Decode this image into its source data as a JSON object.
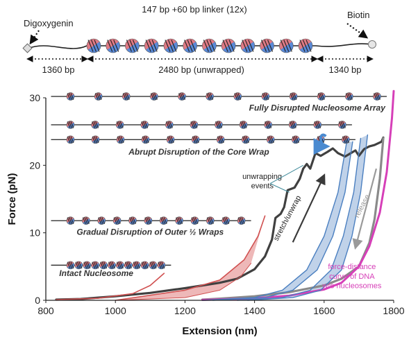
{
  "header": {
    "left_label": "Digoxygenin",
    "right_label": "Biotin",
    "construct_label": "147 bp +60 bp linker (12x)",
    "nucleosome_count": 12,
    "left_handle": "1360 bp",
    "middle_segment": "2480 bp (unwrapped)",
    "right_handle": "1340 bp"
  },
  "colors": {
    "data_trace": "#404040",
    "release_trace": "#8a8a8a",
    "dna_curve": "#d63fb8",
    "unwrap_band": "#4a7fc0",
    "outer_wrap_fill": "#e8a0a0",
    "outer_wrap_line": "#d05050",
    "arrow_blue": "#4a8ad0",
    "nucleosome_pink": "#e07a85",
    "nucleosome_blue": "#5a8ad8"
  },
  "chart_data": {
    "type": "line",
    "xlabel": "Extension (nm)",
    "ylabel": "Force (pN)",
    "xlim": [
      800,
      1800
    ],
    "ylim": [
      0,
      30
    ],
    "xticks": [
      800,
      1000,
      1200,
      1400,
      1600,
      1800
    ],
    "yticks": [
      0,
      10,
      20,
      30
    ],
    "grid": false,
    "series": [
      {
        "role": "stretch",
        "points": [
          [
            830,
            0.1
          ],
          [
            900,
            0.2
          ],
          [
            1000,
            0.6
          ],
          [
            1100,
            1.1
          ],
          [
            1200,
            1.8
          ],
          [
            1300,
            2.6
          ],
          [
            1350,
            3.2
          ],
          [
            1400,
            4.6
          ],
          [
            1430,
            6.5
          ],
          [
            1450,
            9.0
          ],
          [
            1460,
            12.2
          ],
          [
            1475,
            12.8
          ],
          [
            1485,
            13.8
          ],
          [
            1495,
            16.3
          ],
          [
            1515,
            16.7
          ],
          [
            1530,
            18.0
          ],
          [
            1540,
            19.5
          ],
          [
            1550,
            20.2
          ],
          [
            1560,
            19.5
          ],
          [
            1575,
            21.8
          ],
          [
            1590,
            21.4
          ],
          [
            1610,
            22.0
          ],
          [
            1625,
            22.5
          ],
          [
            1640,
            21.8
          ],
          [
            1660,
            21.3
          ],
          [
            1690,
            22.2
          ],
          [
            1700,
            21.4
          ],
          [
            1715,
            22.4
          ],
          [
            1730,
            22.8
          ],
          [
            1745,
            23.0
          ],
          [
            1765,
            23.5
          ],
          [
            1770,
            24.1
          ]
        ]
      },
      {
        "role": "release",
        "points": [
          [
            1770,
            24.0
          ],
          [
            1760,
            18.0
          ],
          [
            1745,
            12.0
          ],
          [
            1730,
            8.5
          ],
          [
            1700,
            5.0
          ],
          [
            1650,
            3.2
          ],
          [
            1600,
            2.2
          ],
          [
            1500,
            1.2
          ],
          [
            1400,
            0.6
          ],
          [
            1300,
            0.25
          ],
          [
            1250,
            0.1
          ]
        ]
      },
      {
        "role": "dna-without-nucleosomes",
        "points": [
          [
            1250,
            0.05
          ],
          [
            1400,
            0.3
          ],
          [
            1500,
            0.7
          ],
          [
            1600,
            1.6
          ],
          [
            1650,
            2.6
          ],
          [
            1700,
            5.0
          ],
          [
            1730,
            8.0
          ],
          [
            1760,
            13.0
          ],
          [
            1780,
            19.0
          ],
          [
            1795,
            27.0
          ],
          [
            1800,
            31.0
          ]
        ]
      },
      {
        "role": "unwrap-band-1-left",
        "points": [
          [
            1250,
            0
          ],
          [
            1400,
            0.4
          ],
          [
            1480,
            1.5
          ],
          [
            1550,
            4.5
          ],
          [
            1600,
            9.5
          ],
          [
            1640,
            16.0
          ],
          [
            1665,
            23.5
          ]
        ]
      },
      {
        "role": "unwrap-band-1-right",
        "points": [
          [
            1280,
            0
          ],
          [
            1430,
            0.4
          ],
          [
            1510,
            1.5
          ],
          [
            1580,
            4.5
          ],
          [
            1625,
            9.5
          ],
          [
            1660,
            16.0
          ],
          [
            1682,
            23.5
          ]
        ]
      },
      {
        "role": "unwrap-band-2-left",
        "points": [
          [
            1350,
            0
          ],
          [
            1480,
            0.4
          ],
          [
            1560,
            1.5
          ],
          [
            1620,
            4.5
          ],
          [
            1655,
            9.5
          ],
          [
            1685,
            16.0
          ],
          [
            1705,
            24.0
          ]
        ]
      },
      {
        "role": "unwrap-band-2-right",
        "points": [
          [
            1380,
            0
          ],
          [
            1510,
            0.4
          ],
          [
            1590,
            1.5
          ],
          [
            1650,
            4.5
          ],
          [
            1680,
            9.5
          ],
          [
            1705,
            16.0
          ],
          [
            1725,
            24.5
          ]
        ]
      },
      {
        "role": "outer-wrap-upper",
        "points": [
          [
            1000,
            0
          ],
          [
            1200,
            1.5
          ],
          [
            1300,
            3.0
          ],
          [
            1370,
            6.0
          ],
          [
            1410,
            9.5
          ],
          [
            1430,
            12.5
          ]
        ]
      },
      {
        "role": "outer-wrap-lower",
        "points": [
          [
            1000,
            0
          ],
          [
            1200,
            0.4
          ],
          [
            1300,
            1.5
          ],
          [
            1360,
            3.5
          ],
          [
            1390,
            5.5
          ]
        ]
      },
      {
        "role": "intact-red",
        "points": [
          [
            830,
            0.1
          ],
          [
            950,
            0.3
          ],
          [
            1050,
            1.0
          ],
          [
            1100,
            2.2
          ],
          [
            1140,
            4.0
          ]
        ]
      }
    ],
    "nucleosome_rows": [
      {
        "y": 30.2,
        "x0": 815,
        "x1": 1780,
        "count": 12,
        "label": "Fully Disrupted Nucleosome Array",
        "label_x": 1580,
        "label_y": 28.1
      },
      {
        "y": 26.0,
        "x0": 815,
        "x1": 1680,
        "count": 12,
        "label": "",
        "label_x": 0,
        "label_y": 0
      },
      {
        "y": 23.8,
        "x0": 815,
        "x1": 1690,
        "count": 12,
        "label": "Abrupt Disruption of the Core Wrap",
        "label_x": 1240,
        "label_y": 21.6
      },
      {
        "y": 11.8,
        "x0": 815,
        "x1": 1390,
        "count": 12,
        "label": "Gradual Disruption of Outer ½ Wraps",
        "label_x": 1100,
        "label_y": 9.7
      },
      {
        "y": 5.2,
        "x0": 815,
        "x1": 1160,
        "count": 12,
        "label": "Intact Nucleosome",
        "label_x": 945,
        "label_y": 3.6
      }
    ],
    "annotations": [
      {
        "text": "unwrapping",
        "x": 1365,
        "y": 18.0,
        "kind": "plain"
      },
      {
        "text": "events",
        "x": 1390,
        "y": 16.6,
        "kind": "plain"
      },
      {
        "text": "stretch/unwrap",
        "x": 1500,
        "y": 12.0,
        "kind": "rot-arrow"
      },
      {
        "text": "release",
        "x": 1715,
        "y": 13.8,
        "kind": "rot-arrow-gray"
      },
      {
        "text": "force-distance",
        "x": 1680,
        "y": 4.6,
        "kind": "magenta"
      },
      {
        "text": "curve of DNA",
        "x": 1680,
        "y": 3.2,
        "kind": "magenta"
      },
      {
        "text": "w/o nucleosomes",
        "x": 1680,
        "y": 1.8,
        "kind": "magenta"
      }
    ]
  }
}
